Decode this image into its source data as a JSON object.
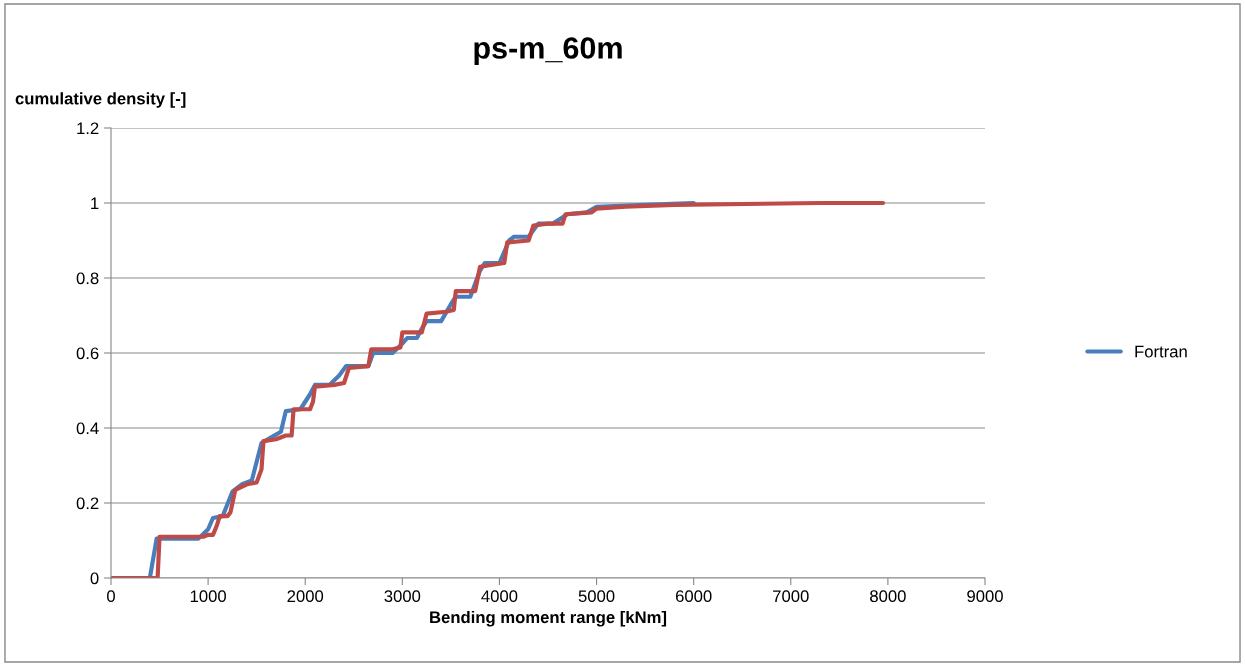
{
  "chart_data": {
    "type": "line",
    "title": "ps-m_60m",
    "xlabel": "Bending moment range [kNm]",
    "ylabel": "cumulative density [-]",
    "xlim": [
      0,
      9000
    ],
    "xticks": [
      0,
      1000,
      2000,
      3000,
      4000,
      5000,
      6000,
      7000,
      8000,
      9000
    ],
    "ylim": [
      0,
      1.2
    ],
    "yticks": [
      0,
      0.2,
      0.4,
      0.6,
      0.8,
      1,
      1.2
    ],
    "grid": "y",
    "legend": "right",
    "line_style": "solid",
    "marker": "none",
    "series": [
      {
        "name": "Fortran",
        "color": "#4a7ebb",
        "x": [
          0,
          400,
          470,
          900,
          1000,
          1050,
          1150,
          1250,
          1350,
          1450,
          1550,
          1650,
          1750,
          1800,
          1950,
          2050,
          2100,
          2250,
          2350,
          2420,
          2650,
          2700,
          2900,
          3000,
          3050,
          3150,
          3200,
          3250,
          3400,
          3500,
          3550,
          3700,
          3800,
          3850,
          4000,
          4100,
          4150,
          4300,
          4400,
          4550,
          4700,
          4900,
          5000,
          5500,
          6000
        ],
        "values": [
          0,
          0,
          0.105,
          0.105,
          0.13,
          0.16,
          0.165,
          0.23,
          0.25,
          0.26,
          0.36,
          0.375,
          0.39,
          0.445,
          0.45,
          0.49,
          0.515,
          0.515,
          0.54,
          0.565,
          0.565,
          0.6,
          0.6,
          0.625,
          0.64,
          0.64,
          0.665,
          0.685,
          0.685,
          0.73,
          0.75,
          0.75,
          0.82,
          0.84,
          0.84,
          0.9,
          0.91,
          0.91,
          0.945,
          0.945,
          0.97,
          0.975,
          0.99,
          0.995,
          1.0
        ]
      },
      {
        "color": "#be4b48",
        "x": [
          0,
          480,
          500,
          950,
          1000,
          1050,
          1090,
          1120,
          1200,
          1230,
          1280,
          1400,
          1500,
          1550,
          1570,
          1700,
          1800,
          1860,
          1880,
          2050,
          2080,
          2100,
          2300,
          2400,
          2450,
          2650,
          2680,
          2900,
          2980,
          3000,
          3200,
          3250,
          3450,
          3530,
          3550,
          3750,
          3800,
          4050,
          4080,
          4300,
          4350,
          4500,
          4650,
          4680,
          4950,
          5000,
          5300,
          5800,
          7300,
          7950
        ],
        "values": [
          0,
          0,
          0.11,
          0.11,
          0.115,
          0.115,
          0.14,
          0.165,
          0.165,
          0.175,
          0.235,
          0.25,
          0.255,
          0.29,
          0.365,
          0.37,
          0.38,
          0.38,
          0.45,
          0.45,
          0.47,
          0.51,
          0.515,
          0.52,
          0.56,
          0.565,
          0.61,
          0.61,
          0.615,
          0.655,
          0.655,
          0.705,
          0.71,
          0.715,
          0.765,
          0.765,
          0.83,
          0.84,
          0.895,
          0.9,
          0.94,
          0.945,
          0.945,
          0.97,
          0.975,
          0.985,
          0.99,
          0.995,
          1.0,
          1.0
        ]
      }
    ]
  }
}
